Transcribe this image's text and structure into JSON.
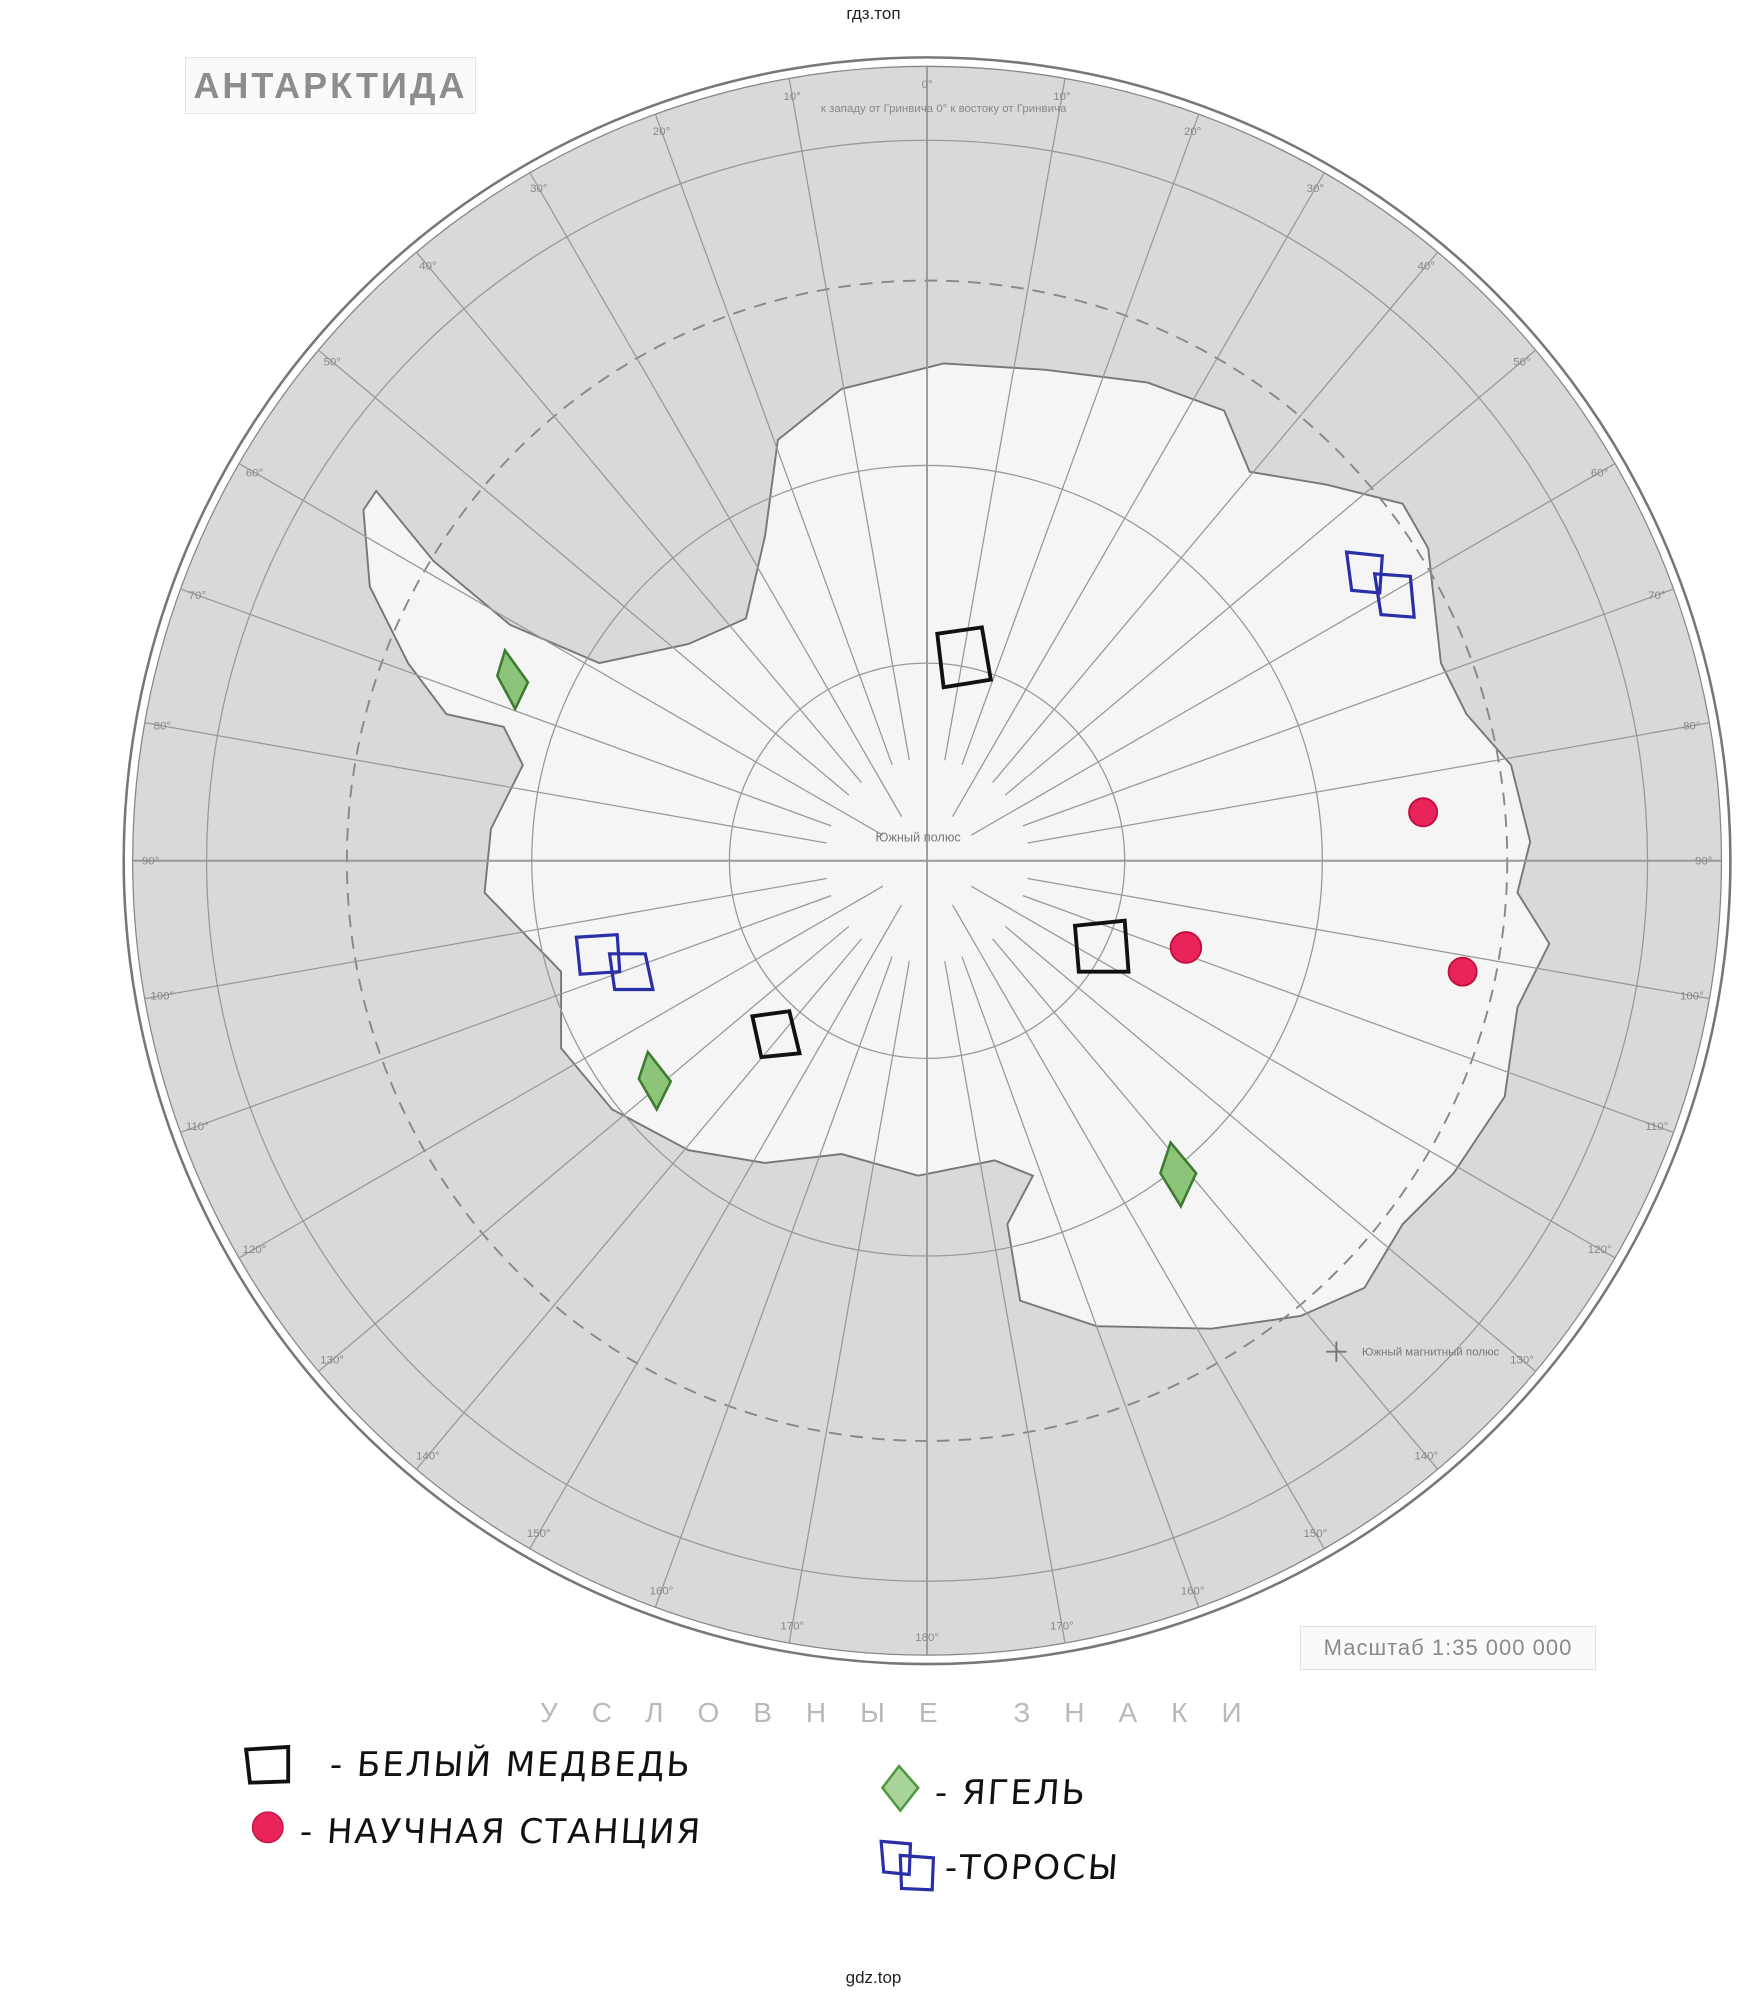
{
  "watermark_top": "гдз.топ",
  "watermark_bottom": "gdz.top",
  "map": {
    "title": "АНТАРКТИДА",
    "top_caption": "к западу от Гринвича 0° к востоку от Гринвича",
    "south_pole_label": "Южный полюс",
    "magnetic_pole_label": "Южный магнитный полюс",
    "scale": "Масштаб 1:35 000 000",
    "meridian_labels": [
      "0°",
      "10°",
      "20°",
      "30°",
      "40°",
      "50°",
      "60°",
      "70°",
      "80°",
      "90°",
      "100°",
      "110°",
      "120°",
      "130°",
      "140°",
      "150°",
      "160°",
      "170°",
      "180°",
      "170°",
      "160°",
      "150°",
      "140°",
      "130°",
      "120°",
      "110°",
      "100°",
      "90°",
      "80°",
      "70°",
      "60°",
      "50°",
      "40°",
      "30°",
      "20°",
      "10°"
    ],
    "colors": {
      "ocean": "#d9d9d9",
      "land": "#f5f5f5",
      "grid": "#9a9a9a"
    }
  },
  "legend": {
    "title": "УСЛОВНЫЕ ЗНАКИ",
    "items": [
      {
        "symbol": "black-square",
        "label": "- БЕЛЫЙ МЕДВЕДЬ",
        "color": "#111111"
      },
      {
        "symbol": "red-dot",
        "label": "- НАУЧНАЯ СТАНЦИЯ",
        "color": "#e8245a"
      },
      {
        "symbol": "green-diamond",
        "label": "- ЯГЕЛЬ",
        "color": "#4e9a3e"
      },
      {
        "symbol": "blue-double-square",
        "label": "-ТОРОСЫ",
        "color": "#2a2fa8"
      }
    ]
  }
}
